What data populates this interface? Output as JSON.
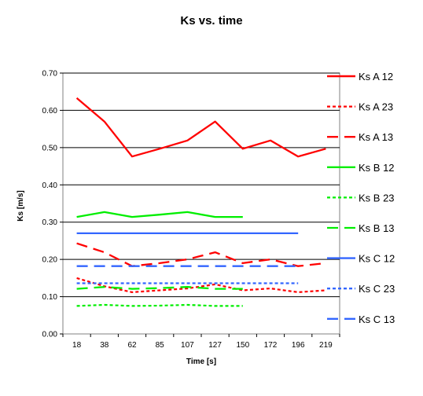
{
  "chart_data": {
    "type": "line",
    "title": "Ks vs. time",
    "xlabel": "Time [s]",
    "ylabel": "Ks [m/s]",
    "categories": [
      "18",
      "38",
      "62",
      "85",
      "107",
      "127",
      "150",
      "172",
      "196",
      "219"
    ],
    "ylim": [
      0,
      0.7
    ],
    "yticks": [
      "0.00",
      "0.10",
      "0.20",
      "0.30",
      "0.40",
      "0.50",
      "0.60",
      "0.70"
    ],
    "grid": "horizontal",
    "legend_position": "right",
    "series": [
      {
        "name": "Ks A 12",
        "color": "#ff0000",
        "style": "solid",
        "values": [
          0.633,
          0.57,
          0.476,
          0.497,
          0.519,
          0.57,
          0.497,
          0.519,
          0.476,
          0.497
        ]
      },
      {
        "name": "Ks A 23",
        "color": "#ff0000",
        "style": "dotted",
        "values": [
          0.15,
          0.128,
          0.112,
          0.117,
          0.122,
          0.133,
          0.117,
          0.122,
          0.112,
          0.117
        ]
      },
      {
        "name": "Ks A 13",
        "color": "#ff0000",
        "style": "longdash",
        "values": [
          0.243,
          0.219,
          0.182,
          0.19,
          0.2,
          0.219,
          0.19,
          0.2,
          0.182,
          0.19
        ]
      },
      {
        "name": "Ks B 12",
        "color": "#00ee00",
        "style": "solid",
        "values": [
          0.314,
          0.327,
          0.314,
          0.32,
          0.327,
          0.314,
          0.314,
          null,
          null,
          null
        ]
      },
      {
        "name": "Ks B 23",
        "color": "#00ee00",
        "style": "dotted",
        "values": [
          0.075,
          0.078,
          0.075,
          0.076,
          0.078,
          0.075,
          0.075,
          null,
          null,
          null
        ]
      },
      {
        "name": "Ks B 13",
        "color": "#00ee00",
        "style": "longdash",
        "values": [
          0.121,
          0.126,
          0.121,
          0.123,
          0.126,
          0.121,
          0.121,
          null,
          null,
          null
        ]
      },
      {
        "name": "Ks C 12",
        "color": "#3366ff",
        "style": "solid",
        "values": [
          0.27,
          0.27,
          0.27,
          0.27,
          0.27,
          0.27,
          0.27,
          0.27,
          0.27,
          null
        ]
      },
      {
        "name": "Ks C 23",
        "color": "#3366ff",
        "style": "dotted",
        "values": [
          0.136,
          0.136,
          0.136,
          0.136,
          0.136,
          0.136,
          0.136,
          0.136,
          0.136,
          null
        ]
      },
      {
        "name": "Ks C 13",
        "color": "#3366ff",
        "style": "longdash",
        "values": [
          0.182,
          0.182,
          0.182,
          0.182,
          0.182,
          0.182,
          0.182,
          0.182,
          0.182,
          null
        ]
      }
    ]
  }
}
